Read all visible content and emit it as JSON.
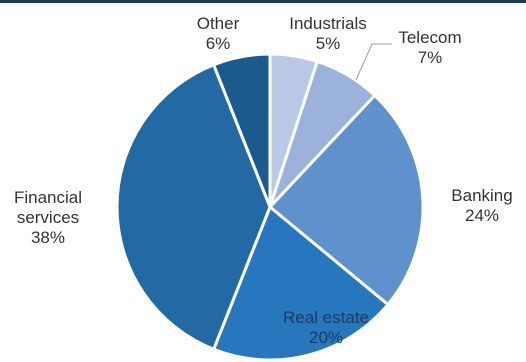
{
  "chart_data": {
    "type": "pie",
    "title": "",
    "slices": [
      {
        "label": "Industrials",
        "label_lines": [
          "Industrials"
        ],
        "value": 5,
        "display": "5%",
        "color": "#b9c9e6",
        "label_color": "#333333"
      },
      {
        "label": "Telecom",
        "label_lines": [
          "Telecom"
        ],
        "value": 7,
        "display": "7%",
        "color": "#9bb3dc",
        "label_color": "#333333"
      },
      {
        "label": "Banking",
        "label_lines": [
          "Banking"
        ],
        "value": 24,
        "display": "24%",
        "color": "#5f91cc",
        "label_color": "#333333"
      },
      {
        "label": "Real estate",
        "label_lines": [
          "Real estate"
        ],
        "value": 20,
        "display": "20%",
        "color": "#2777be",
        "label_color": "#1f3a5f"
      },
      {
        "label": "Financial services",
        "label_lines": [
          "Financial",
          "services"
        ],
        "value": 38,
        "display": "38%",
        "color": "#236aa4",
        "label_color": "#333333"
      },
      {
        "label": "Other",
        "label_lines": [
          "Other"
        ],
        "value": 6,
        "display": "6%",
        "color": "#1b5a8c",
        "label_color": "#333333"
      }
    ]
  }
}
